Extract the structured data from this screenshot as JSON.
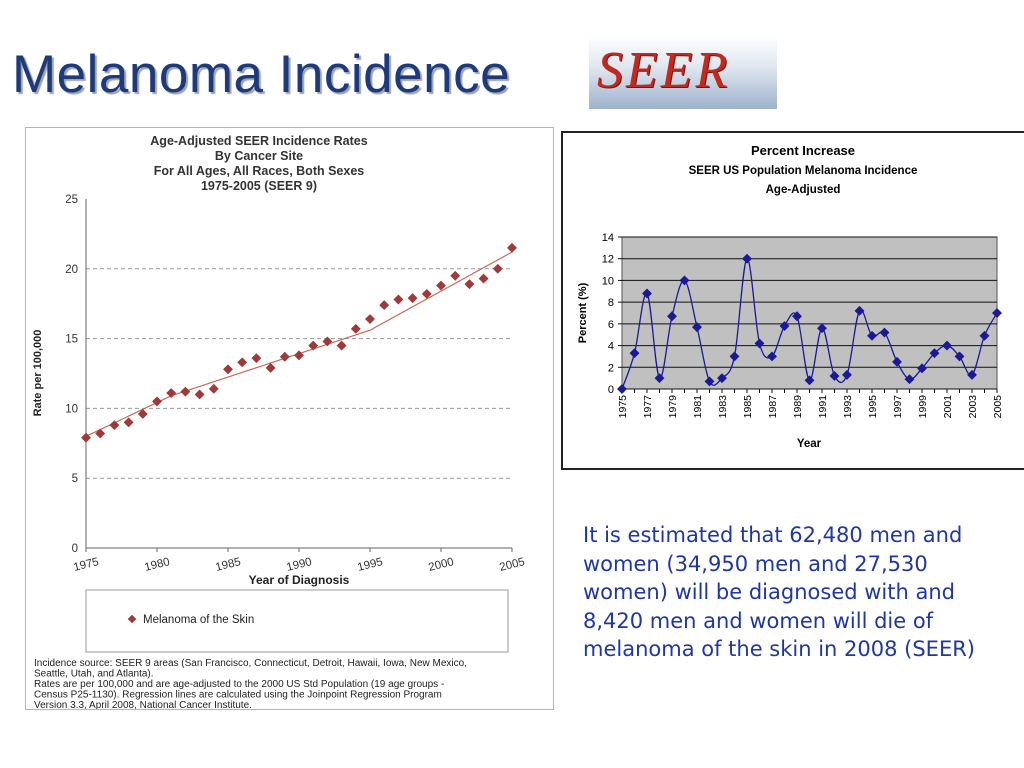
{
  "slide": {
    "title": "Melanoma Incidence",
    "logo_text": "SEER",
    "body_text": "It is estimated that 62,480 men and women (34,950 men and 27,530 women) will be diagnosed with and 8,420 men and women will die of melanoma of the skin in 2008 (SEER)",
    "colors": {
      "title": "#1f3a78",
      "body": "#1f37a0",
      "logo": "#c32a1f"
    }
  },
  "chart_data": [
    {
      "type": "scatter",
      "title_lines": [
        "Age-Adjusted SEER Incidence Rates",
        "By Cancer Site",
        "For All Ages, All Races, Both Sexes",
        "1975-2005 (SEER 9)"
      ],
      "xlabel": "Year of Diagnosis",
      "ylabel": "Rate per 100,000",
      "xlim": [
        1975,
        2005
      ],
      "ylim": [
        0,
        25
      ],
      "x_ticks": [
        "1975",
        "1980",
        "1985",
        "1990",
        "1995",
        "2000",
        "2005"
      ],
      "y_ticks": [
        "0",
        "5",
        "10",
        "15",
        "20",
        "25"
      ],
      "grid": "dashed horizontal",
      "legend": "bottom",
      "series": [
        {
          "name": "Melanoma of the Skin",
          "color": "#9e3a3a",
          "x": [
            1975,
            1976,
            1977,
            1978,
            1979,
            1980,
            1981,
            1982,
            1983,
            1984,
            1985,
            1986,
            1987,
            1988,
            1989,
            1990,
            1991,
            1992,
            1993,
            1994,
            1995,
            1996,
            1997,
            1998,
            1999,
            2000,
            2001,
            2002,
            2003,
            2004,
            2005
          ],
          "y": [
            7.9,
            8.2,
            8.8,
            9.0,
            9.6,
            10.5,
            11.1,
            11.2,
            11.0,
            11.4,
            12.8,
            13.3,
            13.6,
            12.9,
            13.7,
            13.8,
            14.5,
            14.8,
            14.5,
            15.7,
            16.4,
            17.4,
            17.8,
            17.9,
            18.2,
            18.8,
            19.5,
            18.9,
            19.3,
            20.0,
            21.5
          ],
          "trend": {
            "x": [
              1975,
              1981,
              1995,
              2005
            ],
            "y": [
              8.0,
              10.9,
              15.6,
              21.2
            ]
          }
        }
      ],
      "source_note": "Incidence source: SEER 9 areas (San Francisco, Connecticut, Detroit, Hawaii, Iowa, New Mexico, Seattle, Utah, and Atlanta). Rates are per 100,000 and are age-adjusted to the 2000 US Std Population (19 age groups - Census P25-1130). Regression lines are calculated using the Joinpoint Regression Program Version 3.3, April 2008, National Cancer Institute."
    },
    {
      "type": "line",
      "title_lines": [
        "Percent Increase",
        "SEER US Population Melanoma Incidence",
        "Age-Adjusted"
      ],
      "xlabel": "Year",
      "ylabel": "Percent (%)",
      "ylim": [
        0,
        14
      ],
      "y_ticks": [
        "0",
        "2",
        "4",
        "6",
        "8",
        "10",
        "12",
        "14"
      ],
      "x_tick_labels": [
        "1975",
        "1977",
        "1979",
        "1981",
        "1983",
        "1985",
        "1987",
        "1989",
        "1991",
        "1993",
        "1995",
        "1997",
        "1999",
        "2001",
        "2003",
        "2005"
      ],
      "grid": "horizontal",
      "legend": "none",
      "series": [
        {
          "color": "#1a1a96",
          "x": [
            1975,
            1976,
            1977,
            1978,
            1979,
            1980,
            1981,
            1982,
            1983,
            1984,
            1985,
            1986,
            1987,
            1988,
            1989,
            1990,
            1991,
            1992,
            1993,
            1994,
            1995,
            1996,
            1997,
            1998,
            1999,
            2000,
            2001,
            2002,
            2003,
            2004,
            2005
          ],
          "y": [
            0,
            3.3,
            8.8,
            1.0,
            6.7,
            10.0,
            5.7,
            0.7,
            1.0,
            3.0,
            12.0,
            4.2,
            3.0,
            5.8,
            6.7,
            0.8,
            5.6,
            1.2,
            1.3,
            7.2,
            4.9,
            5.2,
            2.5,
            0.9,
            1.9,
            3.3,
            4.0,
            3.0,
            1.3,
            4.9,
            7.0
          ]
        }
      ]
    }
  ]
}
